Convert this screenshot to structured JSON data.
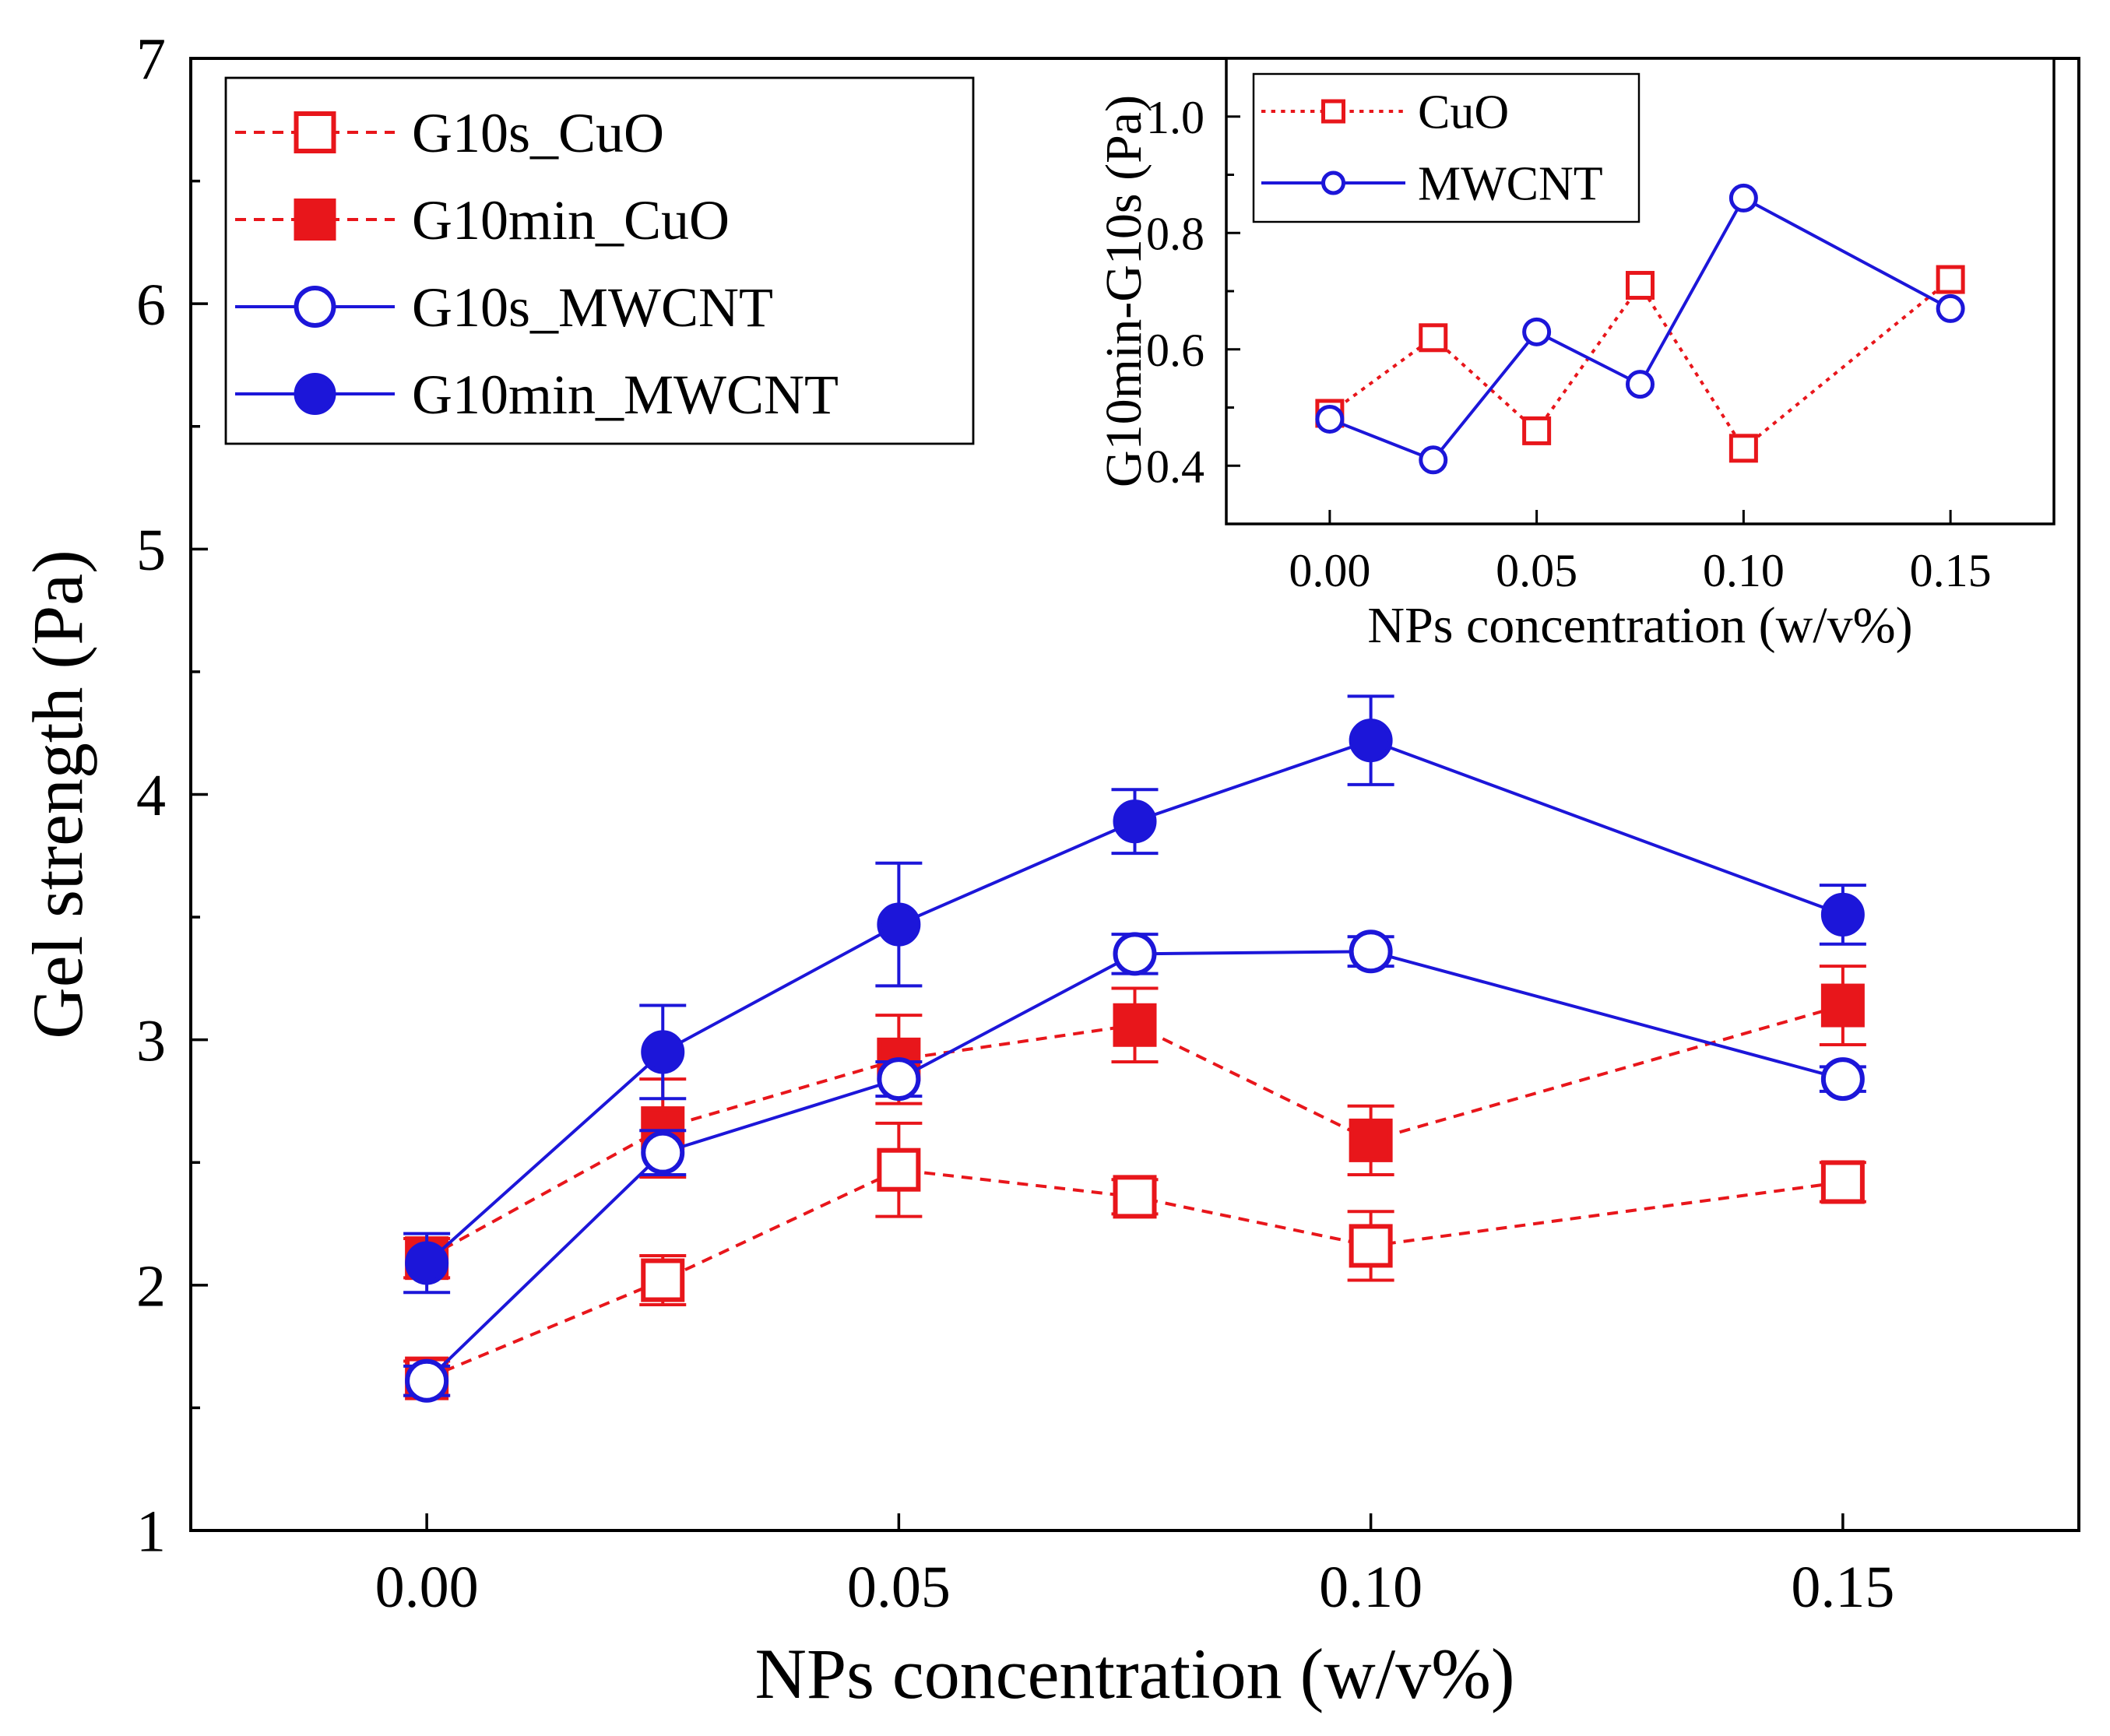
{
  "chart_data": [
    {
      "id": "main",
      "type": "line",
      "xlabel": "NPs concentration (w/v%)",
      "ylabel": "Gel strength (Pa)",
      "xlim": [
        -0.025,
        0.175
      ],
      "ylim": [
        1,
        7
      ],
      "xticks": [
        0.0,
        0.05,
        0.1,
        0.15
      ],
      "xtick_labels": [
        "0.00",
        "0.05",
        "0.10",
        "0.15"
      ],
      "yticks": [
        1,
        2,
        3,
        4,
        5,
        6,
        7
      ],
      "ytick_labels": [
        "1",
        "2",
        "3",
        "4",
        "5",
        "6",
        "7"
      ],
      "x": [
        0.0,
        0.025,
        0.05,
        0.075,
        0.1,
        0.15
      ],
      "legend_position": "top-left",
      "series": [
        {
          "name": "G10s_CuO",
          "color": "#e8161b",
          "line": "dashed",
          "marker": "square-open",
          "values": [
            1.62,
            2.02,
            2.47,
            2.36,
            2.16,
            2.42
          ],
          "errors": [
            0.07,
            0.1,
            0.19,
            0.07,
            0.14,
            0.08
          ]
        },
        {
          "name": "G10min_CuO",
          "color": "#e8161b",
          "line": "dashed",
          "marker": "square-filled",
          "values": [
            2.11,
            2.64,
            2.92,
            3.06,
            2.59,
            3.14
          ],
          "errors": [
            0.08,
            0.2,
            0.18,
            0.15,
            0.14,
            0.16
          ]
        },
        {
          "name": "G10s_MWCNT",
          "color": "#1c16d9",
          "line": "solid",
          "marker": "circle-open",
          "values": [
            1.61,
            2.54,
            2.84,
            3.35,
            3.36,
            2.84
          ],
          "errors": [
            0.06,
            0.09,
            0.07,
            0.08,
            0.06,
            0.05
          ]
        },
        {
          "name": "G10min_MWCNT",
          "color": "#1c16d9",
          "line": "solid",
          "marker": "circle-filled",
          "values": [
            2.09,
            2.95,
            3.47,
            3.89,
            4.22,
            3.51
          ],
          "errors": [
            0.12,
            0.19,
            0.25,
            0.13,
            0.18,
            0.12
          ]
        }
      ]
    },
    {
      "id": "inset",
      "type": "line",
      "xlabel": "NPs concentration (w/v%)",
      "ylabel": "G10min-G10s (Pa)",
      "xlim": [
        -0.025,
        0.175
      ],
      "ylim": [
        0.3,
        1.1
      ],
      "xticks": [
        0.0,
        0.05,
        0.1,
        0.15
      ],
      "xtick_labels": [
        "0.00",
        "0.05",
        "0.10",
        "0.15"
      ],
      "yticks": [
        0.4,
        0.6,
        0.8,
        1.0
      ],
      "ytick_labels": [
        "0.4",
        "0.6",
        "0.8",
        "1.0"
      ],
      "x": [
        0.0,
        0.025,
        0.05,
        0.075,
        0.1,
        0.15
      ],
      "legend_position": "top-left",
      "series": [
        {
          "name": "CuO",
          "color": "#e8161b",
          "line": "dotted",
          "marker": "square-open",
          "values": [
            0.49,
            0.62,
            0.46,
            0.71,
            0.43,
            0.72
          ]
        },
        {
          "name": "MWCNT",
          "color": "#1c16d9",
          "line": "solid",
          "marker": "circle-open",
          "values": [
            0.48,
            0.41,
            0.63,
            0.54,
            0.86,
            0.67
          ]
        }
      ]
    }
  ]
}
